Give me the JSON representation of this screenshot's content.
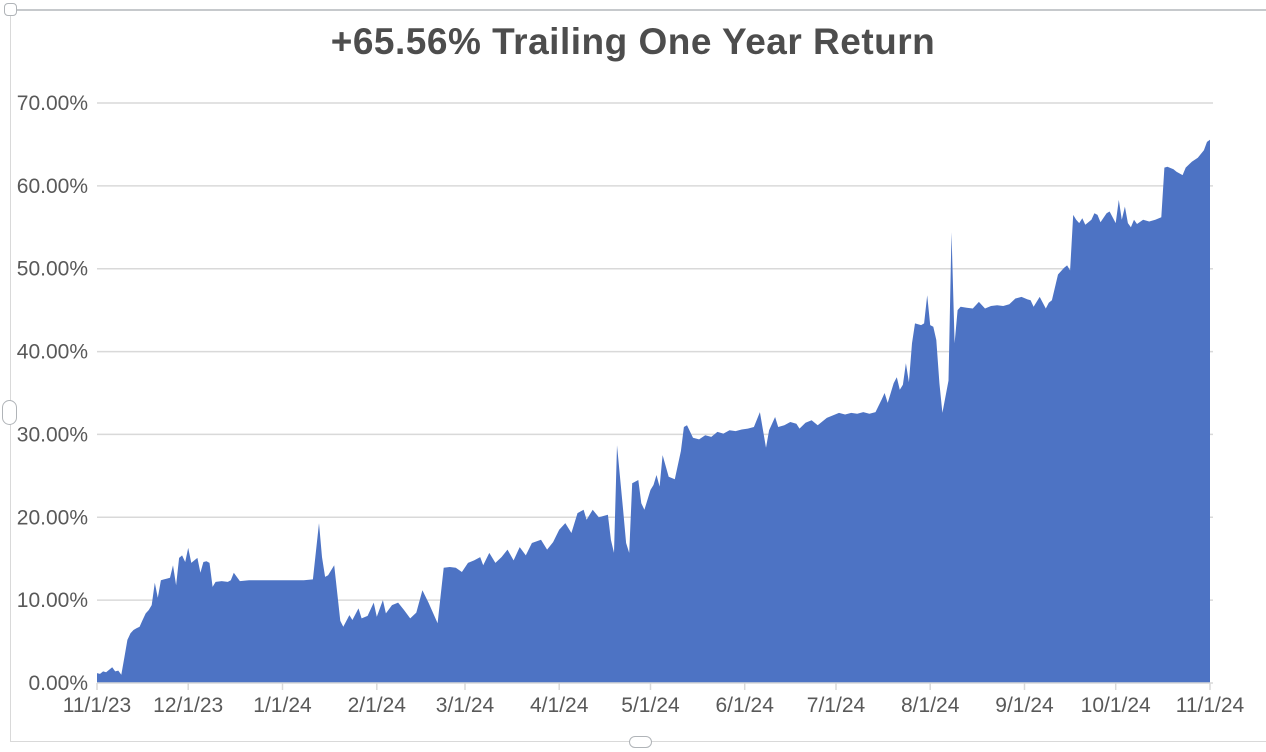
{
  "chart_object": {
    "selected": true,
    "handles": [
      "top-left-corner",
      "left-middle",
      "bottom-center"
    ]
  },
  "chart_data": {
    "type": "area",
    "title": "+65.56% Trailing One Year Return",
    "final_value_label": "+65.56%",
    "grid": {
      "horizontal": true,
      "vertical": false
    },
    "legend": "none",
    "colors": {
      "area": "#4D73C4",
      "tick_text": "#595959",
      "title_text": "#4D4D4D",
      "gridline": "#D9D9D9",
      "axis_line": "#D6D6D6"
    },
    "x_axis": {
      "tick_labels": [
        "11/1/23",
        "12/1/23",
        "1/1/24",
        "2/1/24",
        "3/1/24",
        "4/1/24",
        "5/1/24",
        "6/1/24",
        "7/1/24",
        "8/1/24",
        "9/1/24",
        "10/1/24",
        "11/1/24"
      ],
      "tick_days": [
        0,
        30,
        61,
        92,
        121,
        152,
        182,
        213,
        243,
        274,
        305,
        335,
        366
      ],
      "range_days": [
        0,
        366
      ]
    },
    "y_axis": {
      "tick_labels": [
        "0.00%",
        "10.00%",
        "20.00%",
        "30.00%",
        "40.00%",
        "50.00%",
        "60.00%",
        "70.00%"
      ],
      "tick_values": [
        0,
        10,
        20,
        30,
        40,
        50,
        60,
        70
      ],
      "range": [
        0,
        70
      ]
    },
    "series": [
      {
        "name": "Trailing One Year Return",
        "points": [
          [
            0,
            1.2
          ],
          [
            1,
            1.1
          ],
          [
            2,
            1.4
          ],
          [
            3,
            1.3
          ],
          [
            5,
            1.9
          ],
          [
            6,
            1.4
          ],
          [
            7,
            1.5
          ],
          [
            8,
            1.0
          ],
          [
            9,
            3.1
          ],
          [
            10,
            5.2
          ],
          [
            11,
            6.0
          ],
          [
            12,
            6.4
          ],
          [
            13,
            6.6
          ],
          [
            14,
            6.8
          ],
          [
            15,
            7.6
          ],
          [
            16,
            8.4
          ],
          [
            17,
            8.8
          ],
          [
            18,
            9.4
          ],
          [
            19,
            12.1
          ],
          [
            20,
            10.3
          ],
          [
            21,
            12.4
          ],
          [
            22,
            12.5
          ],
          [
            23,
            12.6
          ],
          [
            24,
            12.7
          ],
          [
            25,
            14.2
          ],
          [
            26,
            11.8
          ],
          [
            27,
            15.1
          ],
          [
            28,
            15.4
          ],
          [
            29,
            14.6
          ],
          [
            30,
            16.3
          ],
          [
            31,
            14.5
          ],
          [
            32,
            14.8
          ],
          [
            33,
            15.1
          ],
          [
            34,
            13.3
          ],
          [
            35,
            14.6
          ],
          [
            36,
            14.7
          ],
          [
            37,
            14.5
          ],
          [
            38,
            11.6
          ],
          [
            39,
            12.2
          ],
          [
            41,
            12.3
          ],
          [
            43,
            12.2
          ],
          [
            44,
            12.4
          ],
          [
            45,
            13.3
          ],
          [
            47,
            12.3
          ],
          [
            50,
            12.4
          ],
          [
            53,
            12.4
          ],
          [
            56,
            12.4
          ],
          [
            59,
            12.4
          ],
          [
            62,
            12.4
          ],
          [
            65,
            12.4
          ],
          [
            68,
            12.4
          ],
          [
            71,
            12.5
          ],
          [
            73,
            19.3
          ],
          [
            74,
            15.2
          ],
          [
            75,
            12.8
          ],
          [
            76,
            13.0
          ],
          [
            78,
            14.2
          ],
          [
            80,
            7.5
          ],
          [
            81,
            6.8
          ],
          [
            83,
            8.2
          ],
          [
            84,
            7.6
          ],
          [
            86,
            9.0
          ],
          [
            87,
            7.8
          ],
          [
            89,
            8.1
          ],
          [
            91,
            9.7
          ],
          [
            92,
            8.0
          ],
          [
            94,
            10.0
          ],
          [
            95,
            8.4
          ],
          [
            97,
            9.4
          ],
          [
            99,
            9.7
          ],
          [
            101,
            8.8
          ],
          [
            103,
            7.8
          ],
          [
            105,
            8.5
          ],
          [
            107,
            11.2
          ],
          [
            109,
            9.7
          ],
          [
            112,
            7.2
          ],
          [
            114,
            13.9
          ],
          [
            116,
            14.0
          ],
          [
            118,
            13.9
          ],
          [
            120,
            13.4
          ],
          [
            122,
            14.5
          ],
          [
            124,
            14.8
          ],
          [
            126,
            15.2
          ],
          [
            127,
            14.2
          ],
          [
            129,
            15.7
          ],
          [
            131,
            14.5
          ],
          [
            133,
            15.2
          ],
          [
            135,
            16.1
          ],
          [
            137,
            14.8
          ],
          [
            139,
            16.4
          ],
          [
            141,
            15.4
          ],
          [
            143,
            16.9
          ],
          [
            146,
            17.3
          ],
          [
            148,
            16.1
          ],
          [
            150,
            17.0
          ],
          [
            152,
            18.5
          ],
          [
            154,
            19.3
          ],
          [
            156,
            18.1
          ],
          [
            158,
            20.5
          ],
          [
            160,
            20.9
          ],
          [
            161,
            19.7
          ],
          [
            163,
            20.9
          ],
          [
            165,
            20.0
          ],
          [
            168,
            20.3
          ],
          [
            169,
            17.3
          ],
          [
            170,
            15.7
          ],
          [
            171,
            28.7
          ],
          [
            173,
            20.9
          ],
          [
            174,
            16.9
          ],
          [
            175,
            15.7
          ],
          [
            176,
            24.1
          ],
          [
            178,
            24.5
          ],
          [
            179,
            21.7
          ],
          [
            180,
            20.9
          ],
          [
            182,
            23.3
          ],
          [
            183,
            23.9
          ],
          [
            184,
            25.1
          ],
          [
            185,
            23.7
          ],
          [
            186,
            27.5
          ],
          [
            188,
            24.9
          ],
          [
            190,
            24.6
          ],
          [
            192,
            28.0
          ],
          [
            193,
            30.9
          ],
          [
            194,
            31.1
          ],
          [
            196,
            29.6
          ],
          [
            198,
            29.4
          ],
          [
            200,
            29.9
          ],
          [
            202,
            29.7
          ],
          [
            204,
            30.3
          ],
          [
            206,
            30.1
          ],
          [
            208,
            30.5
          ],
          [
            210,
            30.4
          ],
          [
            212,
            30.6
          ],
          [
            214,
            30.7
          ],
          [
            216,
            30.9
          ],
          [
            218,
            32.7
          ],
          [
            220,
            28.4
          ],
          [
            221,
            30.5
          ],
          [
            223,
            32.1
          ],
          [
            224,
            30.9
          ],
          [
            226,
            31.1
          ],
          [
            228,
            31.5
          ],
          [
            230,
            31.3
          ],
          [
            231,
            30.7
          ],
          [
            233,
            31.4
          ],
          [
            235,
            31.7
          ],
          [
            237,
            31.1
          ],
          [
            240,
            32.0
          ],
          [
            242,
            32.3
          ],
          [
            244,
            32.6
          ],
          [
            246,
            32.4
          ],
          [
            248,
            32.6
          ],
          [
            250,
            32.5
          ],
          [
            252,
            32.7
          ],
          [
            254,
            32.5
          ],
          [
            256,
            32.7
          ],
          [
            258,
            34.2
          ],
          [
            259,
            35.0
          ],
          [
            260,
            33.8
          ],
          [
            262,
            36.2
          ],
          [
            263,
            36.9
          ],
          [
            264,
            35.4
          ],
          [
            265,
            36.0
          ],
          [
            266,
            38.6
          ],
          [
            267,
            36.3
          ],
          [
            268,
            41.0
          ],
          [
            269,
            43.4
          ],
          [
            271,
            43.2
          ],
          [
            272,
            43.4
          ],
          [
            273,
            46.8
          ],
          [
            274,
            43.2
          ],
          [
            275,
            43.0
          ],
          [
            276,
            41.4
          ],
          [
            277,
            36.2
          ],
          [
            278,
            32.6
          ],
          [
            280,
            36.5
          ],
          [
            281,
            54.4
          ],
          [
            282,
            41.0
          ],
          [
            283,
            45.0
          ],
          [
            284,
            45.4
          ],
          [
            286,
            45.3
          ],
          [
            288,
            45.2
          ],
          [
            290,
            46.0
          ],
          [
            292,
            45.2
          ],
          [
            294,
            45.5
          ],
          [
            296,
            45.6
          ],
          [
            298,
            45.5
          ],
          [
            300,
            45.7
          ],
          [
            302,
            46.4
          ],
          [
            304,
            46.6
          ],
          [
            306,
            46.3
          ],
          [
            307,
            46.2
          ],
          [
            308,
            45.4
          ],
          [
            310,
            46.6
          ],
          [
            312,
            45.2
          ],
          [
            313,
            45.9
          ],
          [
            314,
            46.2
          ],
          [
            316,
            49.3
          ],
          [
            318,
            50.1
          ],
          [
            319,
            50.4
          ],
          [
            320,
            49.8
          ],
          [
            321,
            56.5
          ],
          [
            322,
            55.9
          ],
          [
            323,
            55.5
          ],
          [
            324,
            56.1
          ],
          [
            325,
            55.3
          ],
          [
            327,
            55.9
          ],
          [
            328,
            56.7
          ],
          [
            329,
            56.5
          ],
          [
            330,
            55.6
          ],
          [
            332,
            56.7
          ],
          [
            333,
            56.9
          ],
          [
            335,
            55.5
          ],
          [
            336,
            58.3
          ],
          [
            337,
            55.9
          ],
          [
            338,
            57.5
          ],
          [
            339,
            55.5
          ],
          [
            340,
            55.0
          ],
          [
            341,
            55.9
          ],
          [
            342,
            55.4
          ],
          [
            344,
            55.9
          ],
          [
            346,
            55.7
          ],
          [
            348,
            55.9
          ],
          [
            350,
            56.2
          ],
          [
            351,
            62.2
          ],
          [
            352,
            62.3
          ],
          [
            354,
            62.0
          ],
          [
            355,
            61.7
          ],
          [
            357,
            61.3
          ],
          [
            358,
            62.2
          ],
          [
            360,
            62.9
          ],
          [
            362,
            63.4
          ],
          [
            364,
            64.3
          ],
          [
            365,
            65.3
          ],
          [
            366,
            65.56
          ]
        ]
      }
    ]
  }
}
